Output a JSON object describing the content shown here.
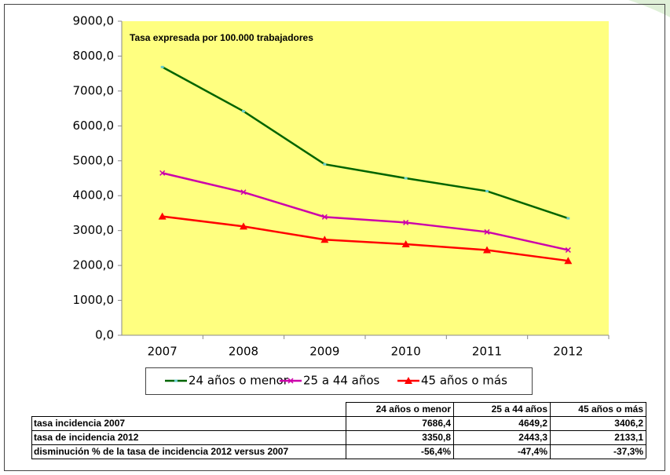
{
  "chart_data": {
    "type": "line",
    "annotation": "Tasa expresada por 100.000 trabajadores",
    "categories": [
      "2007",
      "2008",
      "2009",
      "2010",
      "2011",
      "2012"
    ],
    "series": [
      {
        "name": "24 años o menor",
        "color": "#006400",
        "marker": "dash",
        "values": [
          7686.4,
          6420,
          4900,
          4500,
          4130,
          3350.8
        ]
      },
      {
        "name": "25 a 44 años",
        "color": "#cc00aa",
        "marker": "x",
        "values": [
          4649.2,
          4100,
          3390,
          3230,
          2960,
          2443.3
        ]
      },
      {
        "name": "45 años o más",
        "color": "#ff0000",
        "marker": "triangle",
        "values": [
          3406.2,
          3120,
          2740,
          2610,
          2440,
          2133.1
        ]
      }
    ],
    "ylim": [
      0,
      9000
    ],
    "yticks": [
      {
        "value": 0,
        "label": "0,0"
      },
      {
        "value": 1000,
        "label": "1000,0"
      },
      {
        "value": 2000,
        "label": "2000,0"
      },
      {
        "value": 3000,
        "label": "3000,0"
      },
      {
        "value": 4000,
        "label": "4000,0"
      },
      {
        "value": 5000,
        "label": "5000,0"
      },
      {
        "value": 6000,
        "label": "6000,0"
      },
      {
        "value": 7000,
        "label": "7000,0"
      },
      {
        "value": 8000,
        "label": "8000,0"
      },
      {
        "value": 9000,
        "label": "9000,0"
      }
    ],
    "grid": false,
    "plot_background": "#ffff80",
    "legend": "bottom"
  },
  "table": {
    "columns": [
      "24 años o menor",
      "25 a 44 años",
      "45 años o más"
    ],
    "rows": [
      {
        "label": "tasa incidencia 2007",
        "cells": [
          "7686,4",
          "4649,2",
          "3406,2"
        ]
      },
      {
        "label": "tasa de incidencia 2012",
        "cells": [
          "3350,8",
          "2443,3",
          "2133,1"
        ]
      },
      {
        "label": "disminución % de la tasa de incidencia 2012 versus 2007",
        "cells": [
          "-56,4%",
          "-47,4%",
          "-37,3%"
        ]
      }
    ]
  }
}
